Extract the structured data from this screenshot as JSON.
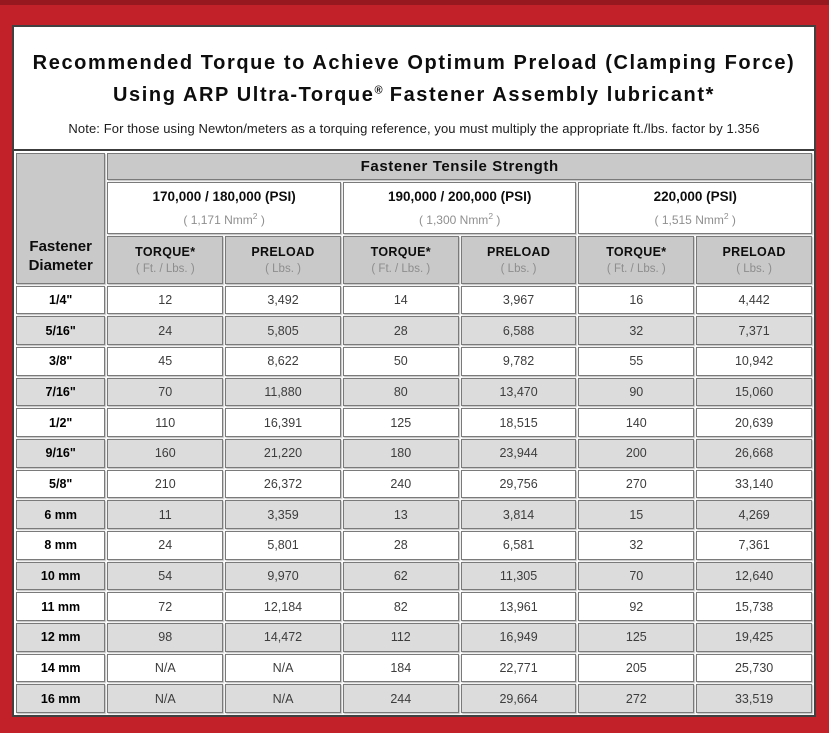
{
  "title": {
    "line1": "Recommended Torque to Achieve Optimum Preload (Clamping Force)",
    "line2_pre": "Using ARP Ultra-Torque",
    "line2_sup": "®",
    "line2_post": " Fastener Assembly lubricant*"
  },
  "note": "Note: For those using Newton/meters as a torquing reference, you must multiply the appropriate ft./lbs. factor by 1.356",
  "colors": {
    "frame_red": "#c2212a",
    "frame_top_shade": "#97191f",
    "header_gray": "#c9c9c9",
    "row_alt_gray": "#dcdcdc",
    "cell_border": "#7a7a7a"
  },
  "table": {
    "corner_header_line1": "Fastener",
    "corner_header_line2": "Diameter",
    "tensile_strength_header": "Fastener Tensile Strength",
    "strength_groups": [
      {
        "psi": "170,000 / 180,000 (PSI)",
        "nmm_pre": "( 1,171 Nmm",
        "nmm_sup": "2",
        "nmm_post": " )"
      },
      {
        "psi": "190,000 / 200,000 (PSI)",
        "nmm_pre": "( 1,300 Nmm",
        "nmm_sup": "2",
        "nmm_post": " )"
      },
      {
        "psi": "220,000 (PSI)",
        "nmm_pre": "( 1,515 Nmm",
        "nmm_sup": "2",
        "nmm_post": " )"
      }
    ],
    "sub_headers": {
      "torque_label": "TORQUE*",
      "torque_unit": "( Ft. / Lbs. )",
      "preload_label": "PRELOAD",
      "preload_unit": "( Lbs. )"
    },
    "rows": [
      {
        "diameter": "1/4\"",
        "values": [
          "12",
          "3,492",
          "14",
          "3,967",
          "16",
          "4,442"
        ]
      },
      {
        "diameter": "5/16\"",
        "values": [
          "24",
          "5,805",
          "28",
          "6,588",
          "32",
          "7,371"
        ]
      },
      {
        "diameter": "3/8\"",
        "values": [
          "45",
          "8,622",
          "50",
          "9,782",
          "55",
          "10,942"
        ]
      },
      {
        "diameter": "7/16\"",
        "values": [
          "70",
          "11,880",
          "80",
          "13,470",
          "90",
          "15,060"
        ]
      },
      {
        "diameter": "1/2\"",
        "values": [
          "110",
          "16,391",
          "125",
          "18,515",
          "140",
          "20,639"
        ]
      },
      {
        "diameter": "9/16\"",
        "values": [
          "160",
          "21,220",
          "180",
          "23,944",
          "200",
          "26,668"
        ]
      },
      {
        "diameter": "5/8\"",
        "values": [
          "210",
          "26,372",
          "240",
          "29,756",
          "270",
          "33,140"
        ]
      },
      {
        "diameter": "6 mm",
        "values": [
          "11",
          "3,359",
          "13",
          "3,814",
          "15",
          "4,269"
        ]
      },
      {
        "diameter": "8 mm",
        "values": [
          "24",
          "5,801",
          "28",
          "6,581",
          "32",
          "7,361"
        ]
      },
      {
        "diameter": "10 mm",
        "values": [
          "54",
          "9,970",
          "62",
          "11,305",
          "70",
          "12,640"
        ]
      },
      {
        "diameter": "11 mm",
        "values": [
          "72",
          "12,184",
          "82",
          "13,961",
          "92",
          "15,738"
        ]
      },
      {
        "diameter": "12 mm",
        "values": [
          "98",
          "14,472",
          "112",
          "16,949",
          "125",
          "19,425"
        ]
      },
      {
        "diameter": "14 mm",
        "values": [
          "N/A",
          "N/A",
          "184",
          "22,771",
          "205",
          "25,730"
        ]
      },
      {
        "diameter": "16 mm",
        "values": [
          "N/A",
          "N/A",
          "244",
          "29,664",
          "272",
          "33,519"
        ]
      }
    ]
  }
}
